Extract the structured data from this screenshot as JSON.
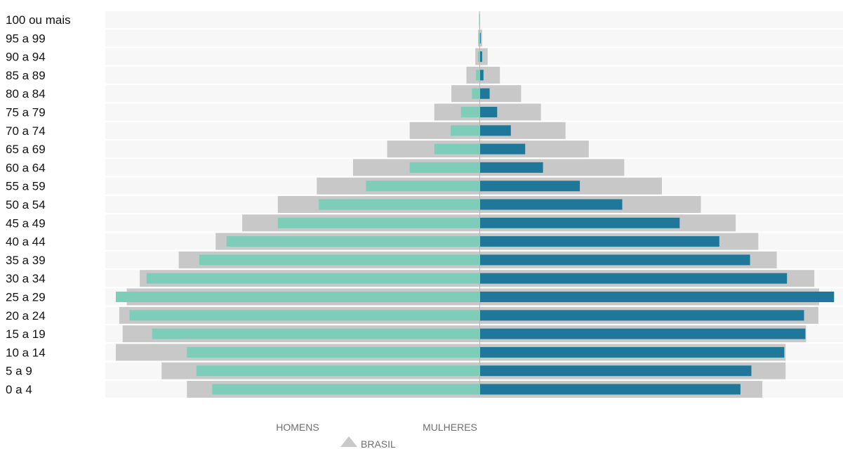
{
  "chart_data": {
    "type": "bar",
    "orientation": "horizontal-pyramid",
    "categories": [
      "0 a 4",
      "5 a 9",
      "10 a 14",
      "15 a 19",
      "20 a 24",
      "25 a 29",
      "30 a 34",
      "35 a 39",
      "40 a 44",
      "45 a 49",
      "50 a 54",
      "55 a 59",
      "60 a 64",
      "65 a 69",
      "70 a 74",
      "75 a 79",
      "80 a 84",
      "85 a 89",
      "90 a 94",
      "95 a 99",
      "100 ou mais"
    ],
    "xlim": [
      -532,
      532
    ],
    "series": [
      {
        "name": "BRASIL",
        "side": "both",
        "color": "#c8c8c8",
        "left": [
          428,
          465,
          532,
          522,
          527,
          516,
          497,
          440,
          386,
          347,
          295,
          238,
          185,
          135,
          102,
          66,
          41,
          19,
          6,
          2,
          0.5
        ],
        "right": [
          414,
          448,
          448,
          478,
          496,
          497,
          490,
          435,
          408,
          375,
          324,
          267,
          212,
          160,
          126,
          90,
          61,
          30,
          12,
          4,
          1
        ]
      },
      {
        "name": "HOMENS",
        "side": "left",
        "color": "#7ecdb9",
        "values": [
          391,
          414,
          428,
          479,
          512,
          532,
          487,
          410,
          370,
          295,
          235,
          166,
          102,
          66,
          42,
          27,
          11,
          5,
          2,
          1,
          0.5
        ]
      },
      {
        "name": "MULHERES",
        "side": "right",
        "color": "#1f7799",
        "values": [
          382,
          398,
          446,
          477,
          475,
          519,
          450,
          396,
          351,
          293,
          209,
          147,
          93,
          67,
          46,
          26,
          15,
          6,
          4,
          2,
          1
        ]
      }
    ],
    "legend": {
      "left_label": "HOMENS",
      "right_label": "MULHERES",
      "reference_label": "BRASIL",
      "placement": "bottom-center"
    },
    "grid": false
  }
}
